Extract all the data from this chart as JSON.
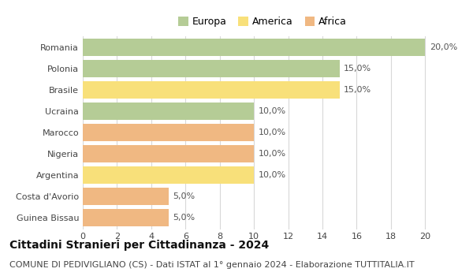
{
  "title": "Cittadini Stranieri per Cittadinanza - 2024",
  "subtitle": "COMUNE DI PEDIVIGLIANO (CS) - Dati ISTAT al 1° gennaio 2024 - Elaborazione TUTTITALIA.IT",
  "categories": [
    "Romania",
    "Polonia",
    "Brasile",
    "Ucraina",
    "Marocco",
    "Nigeria",
    "Argentina",
    "Costa d'Avorio",
    "Guinea Bissau"
  ],
  "values": [
    20,
    15,
    15,
    10,
    10,
    10,
    10,
    5,
    5
  ],
  "labels": [
    "20,0%",
    "15,0%",
    "15,0%",
    "10,0%",
    "10,0%",
    "10,0%",
    "10,0%",
    "5,0%",
    "5,0%"
  ],
  "colors": [
    "#b5cc96",
    "#b5cc96",
    "#f8e07a",
    "#b5cc96",
    "#f0b882",
    "#f0b882",
    "#f8e07a",
    "#f0b882",
    "#f0b882"
  ],
  "legend": [
    {
      "label": "Europa",
      "color": "#b5cc96"
    },
    {
      "label": "America",
      "color": "#f8e07a"
    },
    {
      "label": "Africa",
      "color": "#f0b882"
    }
  ],
  "xlim": [
    0,
    21
  ],
  "xticks": [
    0,
    2,
    4,
    6,
    8,
    10,
    12,
    14,
    16,
    18,
    20
  ],
  "background_color": "#ffffff",
  "grid_color": "#d8d8d8",
  "bar_height": 0.82,
  "title_fontsize": 10,
  "subtitle_fontsize": 8,
  "tick_fontsize": 8,
  "label_fontsize": 8,
  "legend_fontsize": 9
}
